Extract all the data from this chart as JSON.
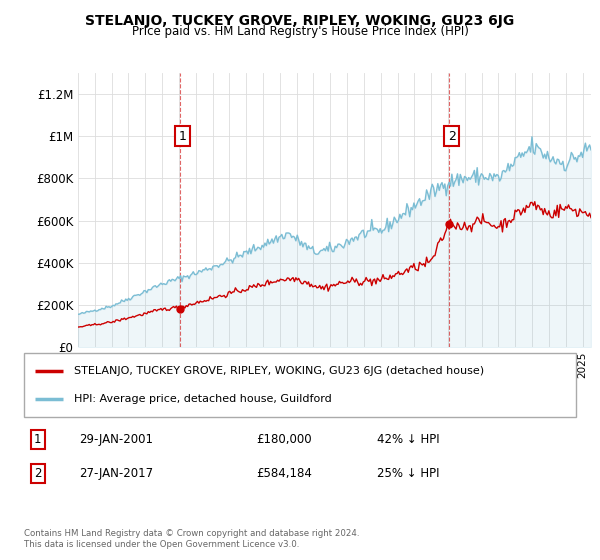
{
  "title": "STELANJO, TUCKEY GROVE, RIPLEY, WOKING, GU23 6JG",
  "subtitle": "Price paid vs. HM Land Registry's House Price Index (HPI)",
  "legend_line1": "STELANJO, TUCKEY GROVE, RIPLEY, WOKING, GU23 6JG (detached house)",
  "legend_line2": "HPI: Average price, detached house, Guildford",
  "sale1_label": "1",
  "sale1_date": "29-JAN-2001",
  "sale1_price": "£180,000",
  "sale1_hpi": "42% ↓ HPI",
  "sale2_label": "2",
  "sale2_date": "27-JAN-2017",
  "sale2_price": "£584,184",
  "sale2_hpi": "25% ↓ HPI",
  "footer": "Contains HM Land Registry data © Crown copyright and database right 2024.\nThis data is licensed under the Open Government Licence v3.0.",
  "house_color": "#cc0000",
  "hpi_color": "#7bbdd4",
  "background_color": "#ffffff",
  "grid_color": "#dddddd",
  "ylim": [
    0,
    1300000
  ],
  "yticks": [
    0,
    200000,
    400000,
    600000,
    800000,
    1000000,
    1200000
  ],
  "ytick_labels": [
    "£0",
    "£200K",
    "£400K",
    "£600K",
    "£800K",
    "£1M",
    "£1.2M"
  ],
  "xstart_year": 1995,
  "xend_year": 2025
}
